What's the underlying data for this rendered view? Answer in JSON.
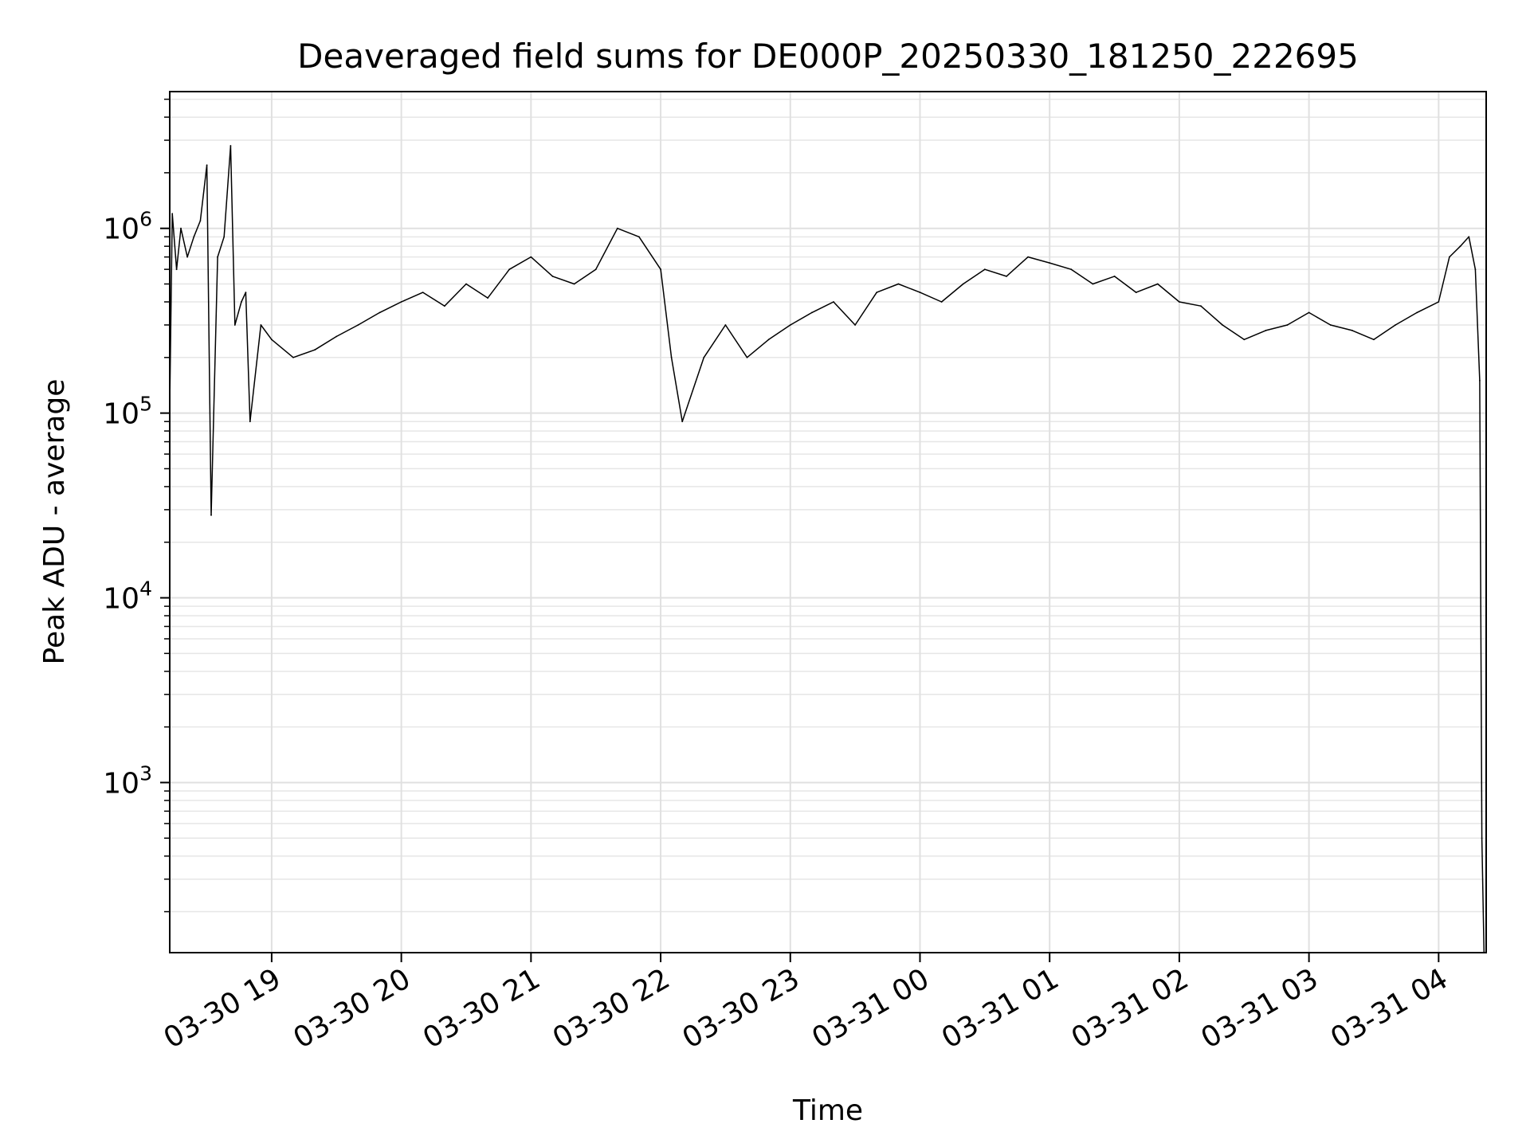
{
  "chart_data": {
    "type": "line",
    "title": "Deaveraged field sums for DE000P_20250330_181250_222695",
    "xlabel": "Time",
    "ylabel": "Peak ADU - average",
    "yscale": "log",
    "grid": true,
    "xlim": [
      "2025-03-30 18:12:50",
      "2025-03-31 04:22:00"
    ],
    "ylim": [
      120,
      5500000
    ],
    "x_ticks": [
      {
        "time": "2025-03-30 19:00",
        "label": "03-30 19"
      },
      {
        "time": "2025-03-30 20:00",
        "label": "03-30 20"
      },
      {
        "time": "2025-03-30 21:00",
        "label": "03-30 21"
      },
      {
        "time": "2025-03-30 22:00",
        "label": "03-30 22"
      },
      {
        "time": "2025-03-30 23:00",
        "label": "03-30 23"
      },
      {
        "time": "2025-03-31 00:00",
        "label": "03-31 00"
      },
      {
        "time": "2025-03-31 01:00",
        "label": "03-31 01"
      },
      {
        "time": "2025-03-31 02:00",
        "label": "03-31 02"
      },
      {
        "time": "2025-03-31 03:00",
        "label": "03-31 03"
      },
      {
        "time": "2025-03-31 04:00",
        "label": "03-31 04"
      }
    ],
    "y_ticks": [
      {
        "value": 1000,
        "mantissa": "10",
        "exponent": "3"
      },
      {
        "value": 10000,
        "mantissa": "10",
        "exponent": "4"
      },
      {
        "value": 100000,
        "mantissa": "10",
        "exponent": "5"
      },
      {
        "value": 1000000,
        "mantissa": "10",
        "exponent": "6"
      }
    ],
    "series_color": "#000000",
    "series": [
      {
        "x": [
          "2025-03-30 18:12:50",
          "2025-03-30 18:14:00",
          "2025-03-30 18:16:00",
          "2025-03-30 18:18:00",
          "2025-03-30 18:21:00",
          "2025-03-30 18:24:00",
          "2025-03-30 18:27:00",
          "2025-03-30 18:30:00",
          "2025-03-30 18:32:00",
          "2025-03-30 18:35:00",
          "2025-03-30 18:38:00",
          "2025-03-30 18:41:00",
          "2025-03-30 18:43:00",
          "2025-03-30 18:46:00",
          "2025-03-30 18:48:00",
          "2025-03-30 18:50:00",
          "2025-03-30 18:55:00",
          "2025-03-30 19:00:00",
          "2025-03-30 19:10:00",
          "2025-03-30 19:20:00",
          "2025-03-30 19:30:00",
          "2025-03-30 19:40:00",
          "2025-03-30 19:50:00",
          "2025-03-30 20:00:00",
          "2025-03-30 20:10:00",
          "2025-03-30 20:20:00",
          "2025-03-30 20:30:00",
          "2025-03-30 20:40:00",
          "2025-03-30 20:50:00",
          "2025-03-30 21:00:00",
          "2025-03-30 21:10:00",
          "2025-03-30 21:20:00",
          "2025-03-30 21:30:00",
          "2025-03-30 21:40:00",
          "2025-03-30 21:50:00",
          "2025-03-30 22:00:00",
          "2025-03-30 22:05:00",
          "2025-03-30 22:10:00",
          "2025-03-30 22:20:00",
          "2025-03-30 22:30:00",
          "2025-03-30 22:40:00",
          "2025-03-30 22:50:00",
          "2025-03-30 23:00:00",
          "2025-03-30 23:10:00",
          "2025-03-30 23:20:00",
          "2025-03-30 23:30:00",
          "2025-03-30 23:40:00",
          "2025-03-30 23:50:00",
          "2025-03-31 00:00:00",
          "2025-03-31 00:10:00",
          "2025-03-31 00:20:00",
          "2025-03-31 00:30:00",
          "2025-03-31 00:40:00",
          "2025-03-31 00:50:00",
          "2025-03-31 01:00:00",
          "2025-03-31 01:10:00",
          "2025-03-31 01:20:00",
          "2025-03-31 01:30:00",
          "2025-03-31 01:40:00",
          "2025-03-31 01:50:00",
          "2025-03-31 02:00:00",
          "2025-03-31 02:10:00",
          "2025-03-31 02:20:00",
          "2025-03-31 02:30:00",
          "2025-03-31 02:40:00",
          "2025-03-31 02:50:00",
          "2025-03-31 03:00:00",
          "2025-03-31 03:10:00",
          "2025-03-31 03:20:00",
          "2025-03-31 03:30:00",
          "2025-03-31 03:40:00",
          "2025-03-31 03:50:00",
          "2025-03-31 04:00:00",
          "2025-03-31 04:05:00",
          "2025-03-31 04:10:00",
          "2025-03-31 04:14:00",
          "2025-03-31 04:17:00",
          "2025-03-31 04:19:00",
          "2025-03-31 04:20:00",
          "2025-03-31 04:21:00"
        ],
        "y": [
          110000,
          1200000,
          600000,
          1000000,
          700000,
          900000,
          1100000,
          2200000,
          28000,
          700000,
          900000,
          2800000,
          300000,
          400000,
          450000,
          90000,
          300000,
          250000,
          200000,
          220000,
          260000,
          300000,
          350000,
          400000,
          450000,
          380000,
          500000,
          420000,
          600000,
          700000,
          550000,
          500000,
          600000,
          1000000,
          900000,
          600000,
          200000,
          90000,
          200000,
          300000,
          200000,
          250000,
          300000,
          350000,
          400000,
          300000,
          450000,
          500000,
          450000,
          400000,
          500000,
          600000,
          550000,
          700000,
          650000,
          600000,
          500000,
          550000,
          450000,
          500000,
          400000,
          380000,
          300000,
          250000,
          280000,
          300000,
          350000,
          300000,
          280000,
          250000,
          300000,
          350000,
          400000,
          700000,
          800000,
          900000,
          600000,
          150000,
          500,
          120
        ]
      }
    ]
  }
}
